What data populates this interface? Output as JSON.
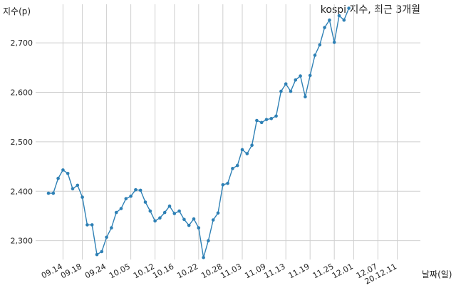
{
  "chart_data": {
    "type": "line",
    "title": "kospi 지수, 최근 3개월",
    "ylabel": "지수(p)",
    "xlabel": "날짜(일)",
    "ylim": [
      2262,
      2778
    ],
    "yticks": [
      2300,
      2400,
      2500,
      2600,
      2700
    ],
    "ytick_labels": [
      "2,300",
      "2,400",
      "2,500",
      "2,600",
      "2,700"
    ],
    "xtick_labels": [
      "09.14",
      "09.18",
      "09.24",
      "10.05",
      "10.12",
      "10.16",
      "10.22",
      "10.28",
      "11.03",
      "11.09",
      "11.13",
      "11.19",
      "11.25",
      "12.01",
      "12.07",
      "20.12.11"
    ],
    "xtick_index": [
      3,
      7,
      12,
      17,
      22,
      26,
      31,
      36,
      40,
      45,
      49,
      54,
      59,
      63,
      68,
      72
    ],
    "grid": true,
    "line_color": "#2e80b5",
    "values": [
      2396,
      2396,
      2426,
      2443,
      2436,
      2405,
      2412,
      2388,
      2332,
      2332,
      2272,
      2278,
      2307,
      2326,
      2357,
      2365,
      2385,
      2390,
      2403,
      2402,
      2378,
      2360,
      2340,
      2346,
      2357,
      2370,
      2355,
      2360,
      2343,
      2331,
      2344,
      2326,
      2266,
      2300,
      2342,
      2356,
      2413,
      2416,
      2446,
      2452,
      2484,
      2476,
      2493,
      2543,
      2539,
      2545,
      2547,
      2552,
      2602,
      2617,
      2602,
      2625,
      2633,
      2591,
      2634,
      2675,
      2696,
      2731,
      2746,
      2701,
      2755,
      2746,
      2770
    ]
  }
}
